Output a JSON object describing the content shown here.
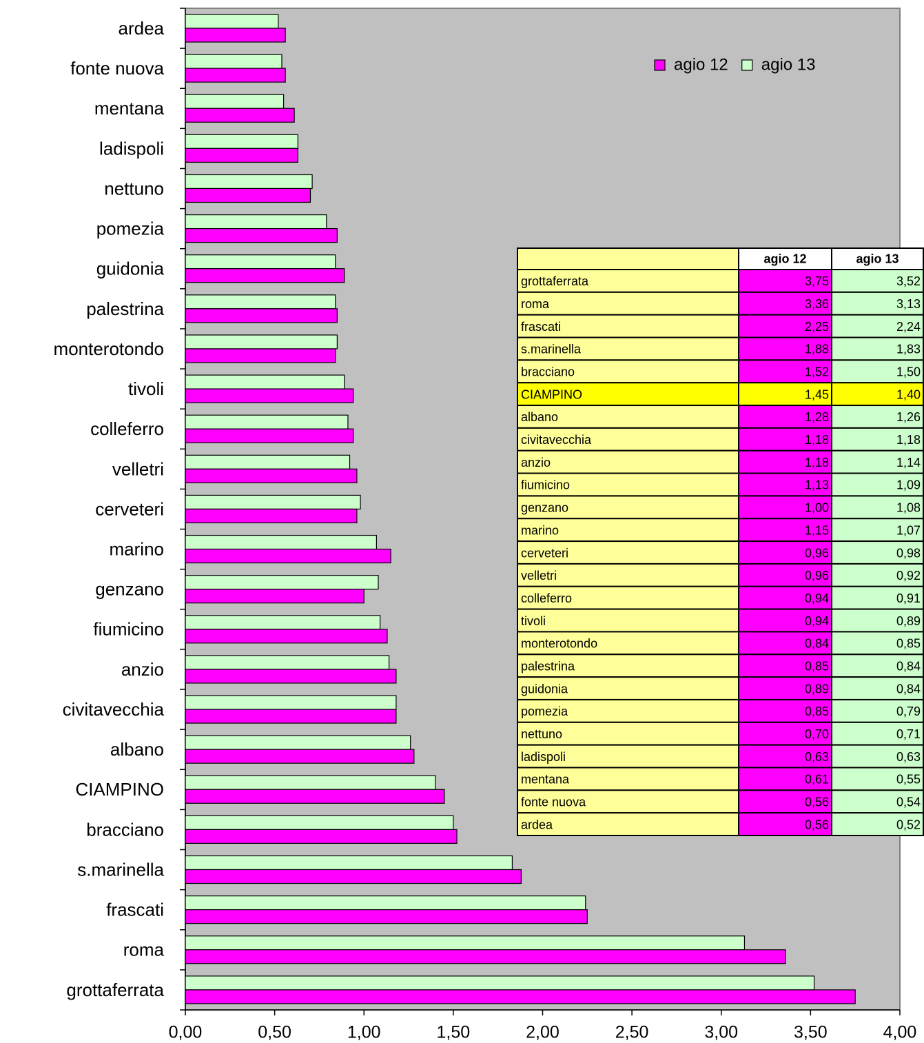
{
  "chart_data": {
    "type": "hbar",
    "categories": [
      "grottaferrata",
      "roma",
      "frascati",
      "s.marinella",
      "bracciano",
      "CIAMPINO",
      "albano",
      "civitavecchia",
      "anzio",
      "fiumicino",
      "genzano",
      "marino",
      "cerveteri",
      "velletri",
      "colleferro",
      "tivoli",
      "monterotondo",
      "palestrina",
      "guidonia",
      "pomezia",
      "nettuno",
      "ladispoli",
      "mentana",
      "fonte nuova",
      "ardea"
    ],
    "series": [
      {
        "name": "agio 12",
        "color": "#ff00ff",
        "values": [
          3.75,
          3.36,
          2.25,
          1.88,
          1.52,
          1.45,
          1.28,
          1.18,
          1.18,
          1.13,
          1.0,
          1.15,
          0.96,
          0.96,
          0.94,
          0.94,
          0.84,
          0.85,
          0.89,
          0.85,
          0.7,
          0.63,
          0.61,
          0.56,
          0.56
        ],
        "value_labels": [
          "3,75",
          "3,36",
          "2,25",
          "1,88",
          "1,52",
          "1,45",
          "1,28",
          "1,18",
          "1,18",
          "1,13",
          "1,00",
          "1,15",
          "0,96",
          "0,96",
          "0,94",
          "0,94",
          "0,84",
          "0,85",
          "0,89",
          "0,85",
          "0,70",
          "0,63",
          "0,61",
          "0,56",
          "0,56"
        ]
      },
      {
        "name": "agio 13",
        "color": "#ccffcc",
        "values": [
          3.52,
          3.13,
          2.24,
          1.83,
          1.5,
          1.4,
          1.26,
          1.18,
          1.14,
          1.09,
          1.08,
          1.07,
          0.98,
          0.92,
          0.91,
          0.89,
          0.85,
          0.84,
          0.84,
          0.79,
          0.71,
          0.63,
          0.55,
          0.54,
          0.52
        ],
        "value_labels": [
          "3,52",
          "3,13",
          "2,24",
          "1,83",
          "1,50",
          "1,40",
          "1,26",
          "1,18",
          "1,14",
          "1,09",
          "1,08",
          "1,07",
          "0,98",
          "0,92",
          "0,91",
          "0,89",
          "0,85",
          "0,84",
          "0,84",
          "0,79",
          "0,71",
          "0,63",
          "0,55",
          "0,54",
          "0,52"
        ]
      }
    ],
    "xlim": [
      0,
      4
    ],
    "xticks": [
      {
        "value": 0,
        "label": "0,00"
      },
      {
        "value": 0.5,
        "label": "0,50"
      },
      {
        "value": 1,
        "label": "1,00"
      },
      {
        "value": 1.5,
        "label": "1,50"
      },
      {
        "value": 2,
        "label": "2,00"
      },
      {
        "value": 2.5,
        "label": "2,50"
      },
      {
        "value": 3,
        "label": "3,00"
      },
      {
        "value": 3.5,
        "label": "3,50"
      },
      {
        "value": 4,
        "label": "4,00"
      }
    ],
    "plot_background": "#c0c0c0",
    "legend": "top-right",
    "table_row_color": "#ffff99",
    "table_highlight_row": 5,
    "table_highlight_color": "#ffff00"
  }
}
